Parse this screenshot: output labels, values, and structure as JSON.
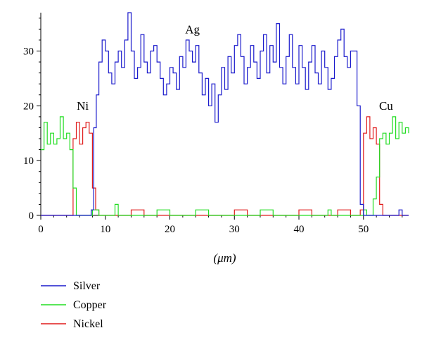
{
  "chart_data": {
    "type": "line",
    "xlabel": "(μm)",
    "ylabel": "",
    "xlim": [
      0,
      57
    ],
    "ylim": [
      0,
      37
    ],
    "xticks": [
      0,
      10,
      20,
      30,
      40,
      50
    ],
    "yticks": [
      0,
      10,
      20,
      30
    ],
    "grid": false,
    "legend_position": "bottom-left",
    "annotations": [
      {
        "text": "Ni",
        "x": 6.5,
        "y": 19.3
      },
      {
        "text": "Ag",
        "x": 23.5,
        "y": 33.2
      },
      {
        "text": "Cu",
        "x": 53.5,
        "y": 19.3
      }
    ],
    "series": [
      {
        "name": "Silver",
        "color": "#1a1acc",
        "x": [
          0,
          2,
          4,
          6,
          7,
          7.8,
          8.2,
          8.6,
          9,
          9.5,
          10,
          10.5,
          11,
          11.5,
          12,
          12.5,
          13,
          13.5,
          14,
          14.5,
          15,
          15.5,
          16,
          16.5,
          17,
          17.5,
          18,
          18.5,
          19,
          19.5,
          20,
          20.5,
          21,
          21.5,
          22,
          22.5,
          23,
          23.5,
          24,
          24.5,
          25,
          25.5,
          26,
          26.5,
          27,
          27.5,
          28,
          28.5,
          29,
          29.5,
          30,
          30.5,
          31,
          31.5,
          32,
          32.5,
          33,
          33.5,
          34,
          34.5,
          35,
          35.5,
          36,
          36.5,
          37,
          37.5,
          38,
          38.5,
          39,
          39.5,
          40,
          40.5,
          41,
          41.5,
          42,
          42.5,
          43,
          43.5,
          44,
          44.5,
          45,
          45.5,
          46,
          46.5,
          47,
          47.5,
          48,
          48.5,
          49,
          49.5,
          50,
          51,
          52,
          53,
          54,
          55,
          55.5,
          56,
          57
        ],
        "y": [
          0,
          0,
          0,
          0,
          0,
          1,
          16,
          22,
          28,
          32,
          30,
          26,
          24,
          28,
          30,
          27,
          32,
          37,
          30,
          25,
          27,
          33,
          28,
          26,
          30,
          31,
          28,
          25,
          22,
          24,
          27,
          26,
          23,
          29,
          27,
          32,
          30,
          28,
          31,
          26,
          22,
          25,
          20,
          24,
          17,
          22,
          27,
          23,
          29,
          26,
          31,
          33,
          29,
          24,
          27,
          31,
          28,
          25,
          30,
          33,
          26,
          31,
          28,
          35,
          27,
          24,
          29,
          33,
          27,
          24,
          31,
          27,
          23,
          28,
          31,
          26,
          24,
          30,
          27,
          23,
          25,
          29,
          32,
          34,
          29,
          27,
          30,
          30,
          20,
          2,
          0,
          0,
          0,
          0,
          0,
          0,
          1,
          0,
          0
        ]
      },
      {
        "name": "Copper",
        "color": "#22dd22",
        "x": [
          0,
          0.5,
          1,
          1.5,
          2,
          2.5,
          3,
          3.5,
          4,
          4.5,
          5,
          5.5,
          6,
          7,
          8,
          9,
          10,
          11,
          11.5,
          12,
          14,
          16,
          18,
          20,
          22,
          24,
          26,
          28,
          30,
          32,
          34,
          36,
          38,
          40,
          42,
          44,
          44.5,
          45,
          47,
          49,
          50,
          50.5,
          51,
          51.5,
          52,
          52.5,
          53,
          53.5,
          54,
          54.5,
          55,
          55.5,
          56,
          56.5,
          57
        ],
        "y": [
          12,
          17,
          13,
          15,
          13,
          14,
          18,
          14,
          15,
          12,
          5,
          0,
          0,
          0,
          1,
          0,
          0,
          0,
          2,
          0,
          0,
          0,
          1,
          0,
          0,
          1,
          0,
          0,
          0,
          0,
          1,
          0,
          0,
          0,
          0,
          0,
          1,
          0,
          0,
          0,
          1,
          0,
          0,
          3,
          7,
          14,
          15,
          13,
          15,
          18,
          14,
          17,
          15,
          16,
          15
        ]
      },
      {
        "name": "Nickel",
        "color": "#e01c1c",
        "x": [
          0,
          1,
          2,
          3,
          4,
          4.5,
          5,
          5.5,
          6,
          6.5,
          7,
          7.5,
          8,
          8.5,
          9,
          10,
          12,
          14,
          16,
          18,
          20,
          22,
          24,
          26,
          28,
          30,
          32,
          34,
          36,
          38,
          40,
          42,
          44,
          46,
          48,
          49,
          49.5,
          50,
          50.5,
          51,
          51.5,
          52,
          52.5,
          53,
          54,
          55,
          56,
          57
        ],
        "y": [
          0,
          0,
          0,
          0,
          0,
          0,
          14,
          17,
          13,
          16,
          17,
          15,
          5,
          1,
          0,
          0,
          0,
          1,
          0,
          0,
          0,
          0,
          0,
          0,
          0,
          1,
          0,
          0,
          0,
          0,
          1,
          0,
          0,
          1,
          0,
          0,
          1,
          15,
          18,
          14,
          16,
          13,
          2,
          0,
          0,
          0,
          0,
          0
        ]
      }
    ]
  }
}
